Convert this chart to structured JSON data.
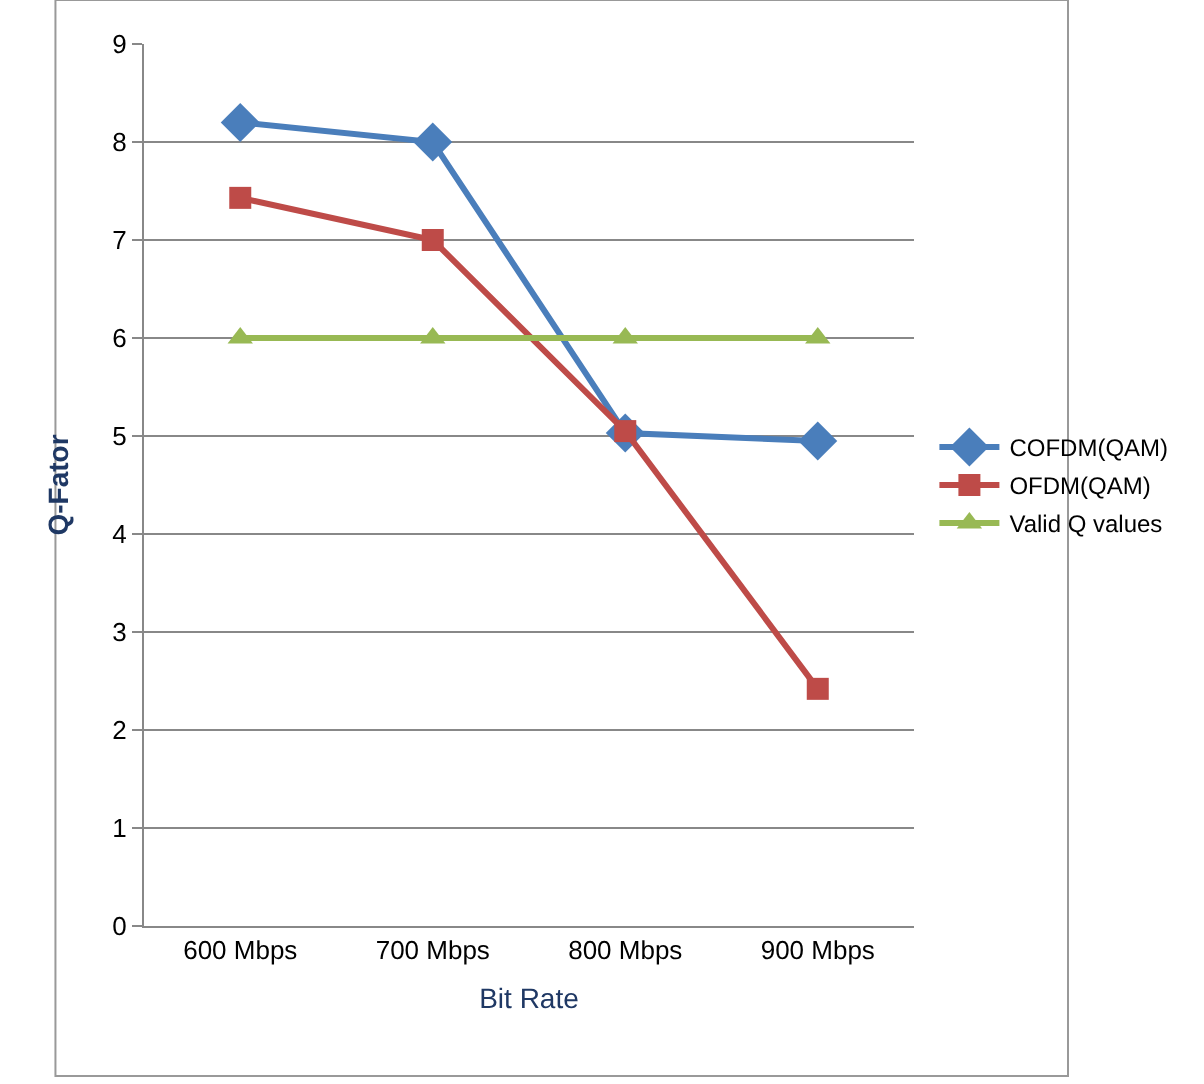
{
  "chart_data": {
    "type": "line",
    "xlabel": "Bit Rate",
    "ylabel": "Q-Fator",
    "categories": [
      "600 Mbps",
      "700 Mbps",
      "800 Mbps",
      "900 Mbps"
    ],
    "series": [
      {
        "name": "COFDM(QAM)",
        "color": "#4a7ebb",
        "values": [
          8.2,
          8.0,
          5.03,
          4.95
        ],
        "marker": "diamond"
      },
      {
        "name": "OFDM(QAM)",
        "color": "#be4b48",
        "values": [
          7.43,
          7.0,
          5.05,
          2.42
        ],
        "marker": "square"
      },
      {
        "name": "Valid Q values",
        "color": "#98b954",
        "values": [
          6,
          6,
          6,
          6
        ],
        "marker": "triangle"
      }
    ],
    "ylim": [
      0,
      9
    ],
    "yticks": [
      0,
      1,
      2,
      3,
      4,
      5,
      6,
      7,
      8,
      9
    ],
    "grid": "y",
    "legend": "right",
    "line_style": "solid"
  }
}
